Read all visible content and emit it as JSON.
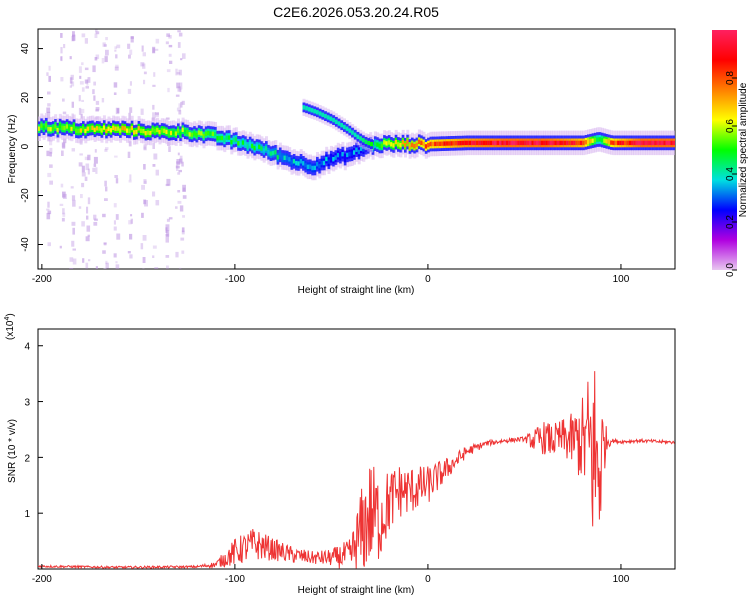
{
  "figure_title": "C2E6.2026.053.20.24.R05",
  "chart_data": [
    {
      "type": "heatmap",
      "xlabel": "Height of straight line (km)",
      "ylabel": "Frequency (Hz)",
      "xlim": [
        -202,
        128
      ],
      "ylim": [
        -50,
        48
      ],
      "x_ticks": [
        -200,
        -100,
        0,
        100
      ],
      "y_ticks": [
        -40,
        -20,
        0,
        20,
        40
      ],
      "colorbar": {
        "label": "Normalized spectral amplitude",
        "range": [
          0,
          1
        ],
        "ticks": [
          0.0,
          0.2,
          0.4,
          0.6,
          0.8
        ],
        "colors": [
          "#e8c8f0",
          "#b000e0",
          "#0000ff",
          "#00e0e0",
          "#00ff00",
          "#ffff00",
          "#ff8000",
          "#ff0000",
          "#ff2060"
        ]
      },
      "ridge": {
        "x": [
          -200,
          -180,
          -160,
          -140,
          -125,
          -110,
          -100,
          -90,
          -80,
          -70,
          -60,
          -50,
          -40,
          -32,
          -25,
          -10,
          0,
          20,
          40,
          60,
          80,
          88,
          95,
          110,
          128
        ],
        "frequency": [
          8,
          7,
          7,
          6,
          6,
          4,
          2,
          0,
          -3,
          -6,
          -8,
          -5,
          -3,
          0,
          1,
          1,
          1,
          1.5,
          1.5,
          1.5,
          1.5,
          3,
          1.5,
          1.5,
          1.5
        ],
        "amplitude": [
          0.55,
          0.6,
          0.65,
          0.6,
          0.55,
          0.5,
          0.45,
          0.45,
          0.4,
          0.35,
          0.35,
          0.3,
          0.3,
          0.3,
          0.55,
          0.7,
          0.8,
          0.9,
          0.95,
          0.95,
          0.85,
          0.45,
          0.8,
          0.95,
          0.95
        ]
      },
      "branch": {
        "x": [
          -65,
          -58,
          -50,
          -42,
          -37,
          -33,
          -30
        ],
        "frequency": [
          16,
          14,
          11,
          7,
          4,
          2,
          1
        ],
        "amplitude": [
          0.25,
          0.25,
          0.25,
          0.25,
          0.25,
          0.3,
          0.35
        ]
      }
    },
    {
      "type": "line",
      "xlabel": "Height of straight line (km)",
      "ylabel": "SNR (10 * v/v)",
      "multiplier": "(x10",
      "multiplier_exp": "4",
      "xlim": [
        -202,
        128
      ],
      "ylim": [
        0,
        4.3
      ],
      "x_ticks": [
        -200,
        -100,
        0,
        100
      ],
      "y_ticks": [
        1,
        2,
        3,
        4
      ],
      "color": "#ee3333",
      "series": [
        {
          "x": [
            -202,
            -160,
            -120,
            -110,
            -100,
            -90,
            -80,
            -70,
            -60,
            -50,
            -40,
            -35,
            -30,
            -25,
            -20,
            -15,
            -10,
            -5,
            0,
            10,
            20,
            30,
            40,
            50,
            55,
            60,
            65,
            70,
            75,
            80,
            84,
            86,
            88,
            90,
            92,
            95,
            100,
            110,
            120,
            128
          ],
          "values": [
            0.05,
            0.03,
            0.04,
            0.08,
            0.3,
            0.45,
            0.35,
            0.25,
            0.2,
            0.2,
            0.25,
            0.6,
            1.0,
            0.9,
            1.2,
            1.4,
            1.4,
            1.45,
            1.5,
            1.8,
            2.1,
            2.25,
            2.3,
            2.33,
            2.3,
            2.35,
            2.3,
            2.35,
            2.3,
            2.3,
            2.2,
            2.0,
            1.8,
            2.0,
            2.3,
            2.3,
            2.28,
            2.3,
            2.28,
            2.27
          ],
          "spread": [
            0.02,
            0.02,
            0.02,
            0.05,
            0.25,
            0.3,
            0.2,
            0.15,
            0.12,
            0.15,
            0.3,
            0.8,
            1.0,
            0.8,
            0.6,
            0.5,
            0.45,
            0.4,
            0.35,
            0.2,
            0.1,
            0.05,
            0.04,
            0.04,
            0.2,
            0.3,
            0.3,
            0.35,
            0.5,
            0.8,
            1.5,
            2.0,
            2.0,
            1.2,
            0.3,
            0.04,
            0.03,
            0.03,
            0.03,
            0.03
          ]
        }
      ]
    }
  ]
}
